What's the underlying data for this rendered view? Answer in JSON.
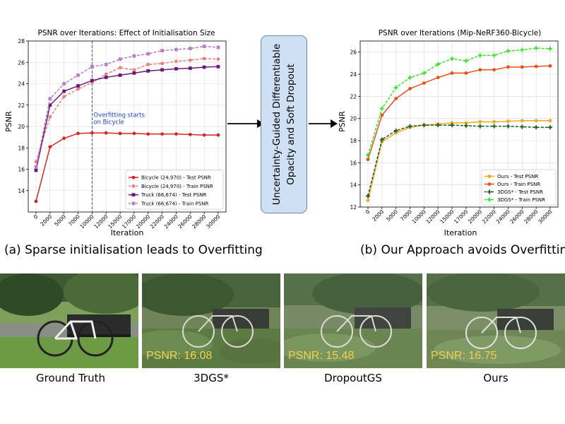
{
  "chart_data": [
    {
      "type": "line",
      "title": "PSNR over Iterations: Effect of Initialisation Size",
      "xlabel": "Iteration",
      "ylabel": "PSNR",
      "categories": [
        "0",
        "2000",
        "5000",
        "7000",
        "10000",
        "12000",
        "15000",
        "17000",
        "20000",
        "22000",
        "24000",
        "26000",
        "28000",
        "30000"
      ],
      "ylim": [
        12,
        28
      ],
      "yticks": [
        14,
        16,
        18,
        20,
        22,
        24,
        26,
        28
      ],
      "grid": true,
      "legend": "bottom-right",
      "series": [
        {
          "name": "Bicycle (24,970) - Test PSNR",
          "color": "#d62728",
          "dashed": false,
          "marker": "circle",
          "values": [
            13.0,
            18.1,
            18.9,
            19.35,
            19.4,
            19.4,
            19.35,
            19.35,
            19.3,
            19.3,
            19.3,
            19.25,
            19.2,
            19.2
          ]
        },
        {
          "name": "Bicycle (24,970) - Train PSNR",
          "color": "#ec7f80",
          "dashed": true,
          "marker": "circle",
          "values": [
            16.7,
            20.9,
            22.8,
            23.5,
            24.1,
            24.9,
            25.5,
            25.3,
            25.8,
            25.9,
            26.1,
            26.2,
            26.35,
            26.3
          ]
        },
        {
          "name": "Truck (66,674) - Test PSNR",
          "color": "#6a1b7a",
          "dashed": false,
          "marker": "square",
          "values": [
            15.9,
            22.0,
            23.3,
            23.8,
            24.3,
            24.6,
            24.8,
            25.0,
            25.2,
            25.3,
            25.4,
            25.45,
            25.55,
            25.6
          ]
        },
        {
          "name": "Truck (66,674) - Train PSNR",
          "color": "#b87fc6",
          "dashed": true,
          "marker": "square",
          "values": [
            16.2,
            22.6,
            24.0,
            24.8,
            25.6,
            25.8,
            26.3,
            26.6,
            26.8,
            27.1,
            27.2,
            27.3,
            27.5,
            27.4
          ]
        }
      ],
      "vline": {
        "at": "10000",
        "color": "#1f3fd6",
        "label_line1": "Overfitting starts",
        "label_line2": "on Bicycle"
      }
    },
    {
      "type": "line",
      "title": "PSNR over Iterations (Mip-NeRF360-Bicycle)",
      "xlabel": "Iteration",
      "ylabel": "PSNR",
      "categories": [
        "0",
        "2000",
        "5000",
        "7000",
        "10000",
        "12000",
        "15000",
        "17000",
        "20000",
        "22000",
        "24000",
        "26000",
        "28000",
        "30000"
      ],
      "ylim": [
        12,
        27
      ],
      "yticks": [
        12,
        14,
        16,
        18,
        20,
        22,
        24,
        26
      ],
      "grid": true,
      "legend": "bottom-right",
      "series": [
        {
          "name": "Ours - Test PSNR",
          "color": "#f5a623",
          "dashed": false,
          "marker": "circle",
          "values": [
            12.6,
            17.9,
            18.7,
            19.2,
            19.4,
            19.5,
            19.6,
            19.6,
            19.7,
            19.7,
            19.75,
            19.8,
            19.8,
            19.8
          ]
        },
        {
          "name": "Ours - Train PSNR",
          "color": "#e8501c",
          "dashed": false,
          "marker": "circle",
          "values": [
            16.3,
            20.3,
            21.8,
            22.7,
            23.2,
            23.7,
            24.1,
            24.1,
            24.4,
            24.4,
            24.65,
            24.65,
            24.7,
            24.75
          ]
        },
        {
          "name": "3DGS* - Test PSNR",
          "color": "#1d5e20",
          "dashed": true,
          "marker": "plus",
          "values": [
            13.0,
            18.1,
            18.9,
            19.3,
            19.4,
            19.4,
            19.4,
            19.35,
            19.3,
            19.3,
            19.3,
            19.25,
            19.2,
            19.2
          ]
        },
        {
          "name": "3DGS* - Train PSNR",
          "color": "#37e32b",
          "dashed": true,
          "marker": "plus",
          "values": [
            16.7,
            20.9,
            22.8,
            23.7,
            24.1,
            24.9,
            25.4,
            25.2,
            25.7,
            25.7,
            26.1,
            26.2,
            26.35,
            26.3
          ]
        }
      ]
    }
  ],
  "captions": {
    "left": "(a) Sparse initialisation leads to Overfitting",
    "right": "(b) Our Approach avoids Overfitting"
  },
  "method_box": {
    "line1": "Uncertainty-Guided Differentiable",
    "line2": "Opacity and Soft Dropout"
  },
  "photos": [
    {
      "label": "Ground Truth",
      "psnr": ""
    },
    {
      "label": "3DGS*",
      "psnr": "PSNR: 16.08"
    },
    {
      "label": "DropoutGS",
      "psnr": "PSNR: 15.48"
    },
    {
      "label": "Ours",
      "psnr": "PSNR: 16.75"
    }
  ],
  "colors": {
    "method_box_fill": "#cfe0f5",
    "grid": "#d9d9d9",
    "psnr_text": "#f1d24c"
  }
}
